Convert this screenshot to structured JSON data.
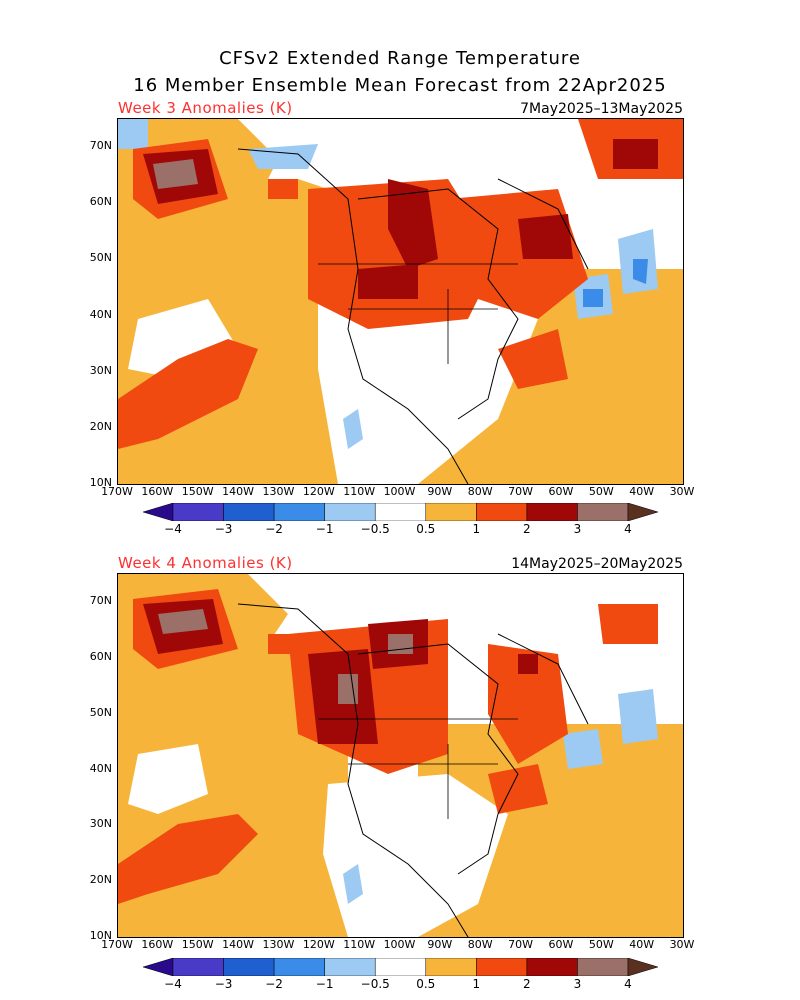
{
  "title_line1": "CFSv2 Extended Range Temperature",
  "title_line2": "16 Member Ensemble Mean Forecast from 22Apr2025",
  "panels": [
    {
      "label": "Week 3 Anomalies (K)",
      "dates": "7May2025–13May2025"
    },
    {
      "label": "Week 4 Anomalies (K)",
      "dates": "14May2025–20May2025"
    }
  ],
  "lat_labels": [
    "70N",
    "60N",
    "50N",
    "40N",
    "30N",
    "20N",
    "10N"
  ],
  "lon_labels": [
    "170W",
    "160W",
    "150W",
    "140W",
    "130W",
    "120W",
    "110W",
    "100W",
    "90W",
    "80W",
    "70W",
    "60W",
    "50W",
    "40W",
    "30W"
  ],
  "colorbar": {
    "labels": [
      "−4",
      "−3",
      "−2",
      "−1",
      "−0.5",
      "0.5",
      "1",
      "2",
      "3",
      "4"
    ],
    "colors": [
      "#2a0a8c",
      "#4a3ac8",
      "#1f5fd0",
      "#3a8ce8",
      "#9ccaf2",
      "#ffffff",
      "#f7b43a",
      "#f04a10",
      "#a00808",
      "#9a7068",
      "#5a3020"
    ]
  }
}
